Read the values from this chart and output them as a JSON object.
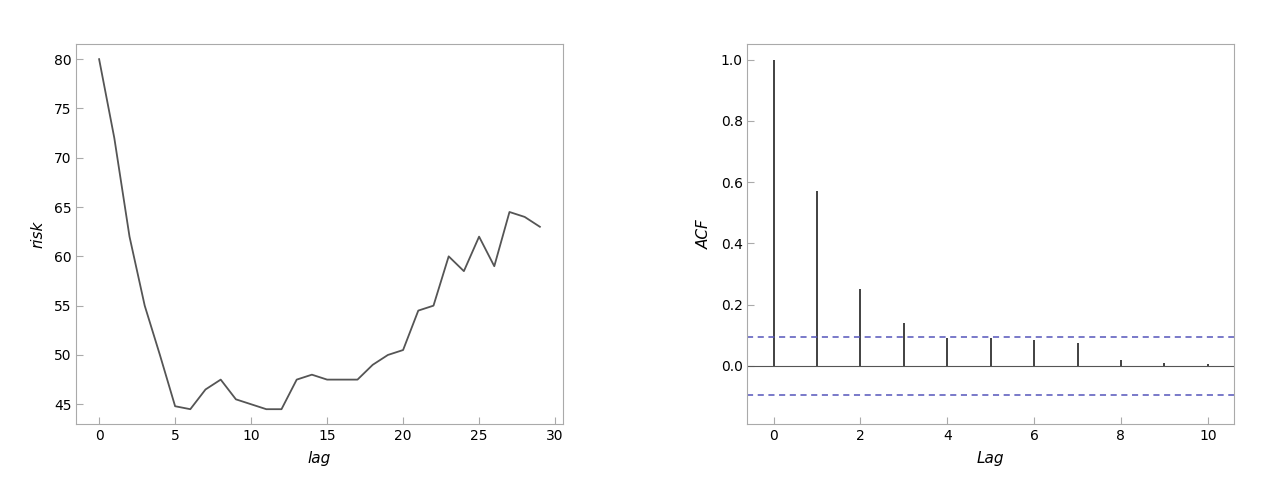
{
  "left_plot": {
    "xlabel": "lag",
    "ylabel": "risk",
    "xlim": [
      -1.5,
      30.5
    ],
    "ylim": [
      43.0,
      81.5
    ],
    "yticks": [
      45,
      50,
      55,
      60,
      65,
      70,
      75,
      80
    ],
    "xticks": [
      0,
      5,
      10,
      15,
      20,
      25,
      30
    ],
    "line_color": "#555555",
    "x": [
      0,
      1,
      2,
      3,
      4,
      5,
      6,
      7,
      8,
      9,
      10,
      11,
      12,
      13,
      14,
      15,
      16,
      17,
      18,
      19,
      20,
      21,
      22,
      23,
      24,
      25,
      26,
      27,
      28,
      29
    ],
    "y": [
      80.0,
      72.0,
      62.0,
      55.0,
      50.0,
      44.8,
      44.5,
      46.5,
      47.5,
      45.5,
      45.0,
      44.5,
      44.5,
      47.5,
      48.0,
      47.5,
      47.5,
      47.5,
      49.0,
      50.0,
      50.5,
      54.5,
      55.0,
      60.0,
      58.5,
      62.0,
      59.0,
      64.5,
      64.0,
      63.0
    ]
  },
  "right_plot": {
    "xlabel": "Lag",
    "ylabel": "ACF",
    "xlim": [
      -0.6,
      10.6
    ],
    "ylim": [
      -0.19,
      1.05
    ],
    "yticks": [
      0.0,
      0.2,
      0.4,
      0.6,
      0.8,
      1.0
    ],
    "xticks": [
      0,
      2,
      4,
      6,
      8,
      10
    ],
    "acf_lags": [
      0,
      1,
      2,
      3,
      4,
      5,
      6,
      7,
      8,
      9,
      10
    ],
    "acf_values": [
      1.0,
      0.57,
      0.25,
      0.14,
      0.09,
      0.09,
      0.085,
      0.075,
      0.02,
      0.01,
      0.005
    ],
    "ci_upper": 0.095,
    "ci_lower": -0.095,
    "stem_color": "#333333",
    "ci_color": "#5555bb",
    "baseline_color": "#555555"
  },
  "bg_color": "#ffffff",
  "spine_color": "#aaaaaa",
  "line_width": 1.3
}
